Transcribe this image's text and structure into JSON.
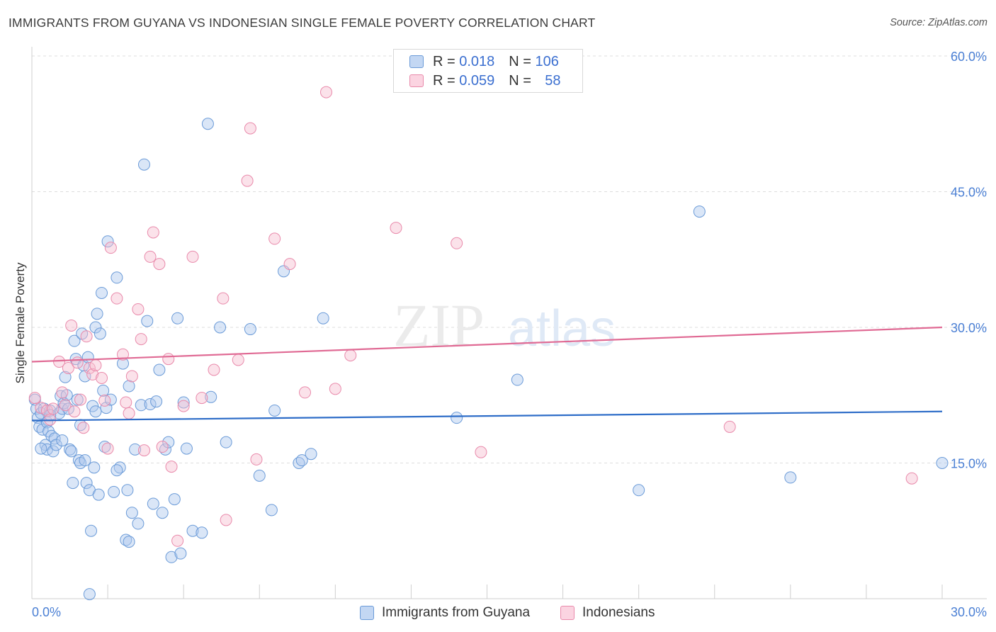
{
  "header": {
    "title": "IMMIGRANTS FROM GUYANA VS INDONESIAN SINGLE FEMALE POVERTY CORRELATION CHART",
    "source": "Source: ZipAtlas.com"
  },
  "watermark": {
    "part1": "ZIP",
    "part2": "atlas"
  },
  "legend": {
    "rows": [
      {
        "r_label": "R =",
        "r_value": "0.018",
        "n_label": "N =",
        "n_value": "106"
      },
      {
        "r_label": "R =",
        "r_value": "0.059",
        "n_label": "N =",
        "n_value": "58"
      }
    ]
  },
  "bottom_legend": {
    "items": [
      {
        "label": "Immigrants from Guyana"
      },
      {
        "label": "Indonesians"
      }
    ]
  },
  "colors": {
    "series1_fill": "#adc8ee",
    "series1_stroke": "#6b9bd8",
    "series1_line": "#2e6dc8",
    "series2_fill": "#f6bfd1",
    "series2_stroke": "#e98aab",
    "series2_line": "#e06a94",
    "grid": "#dddddd",
    "axis_text": "#4a7fd4"
  },
  "chart_data": {
    "type": "scatter",
    "title": "IMMIGRANTS FROM GUYANA VS INDONESIAN SINGLE FEMALE POVERTY CORRELATION CHART",
    "xlabel": "",
    "ylabel": "Single Female Poverty",
    "xlim": [
      0,
      30
    ],
    "ylim": [
      0,
      60
    ],
    "x_tick_labels": [
      "0.0%",
      "30.0%"
    ],
    "y_ticks": [
      15,
      30,
      45,
      60
    ],
    "y_tick_labels": [
      "15.0%",
      "30.0%",
      "45.0%",
      "60.0%"
    ],
    "grid": true,
    "series": [
      {
        "name": "Immigrants from Guyana",
        "r": 0.018,
        "n": 106,
        "trend": {
          "x0": 0,
          "y0": 19.7,
          "x1": 30,
          "y1": 20.7
        },
        "points": [
          [
            0.1,
            22
          ],
          [
            0.15,
            21
          ],
          [
            0.2,
            20
          ],
          [
            0.25,
            19
          ],
          [
            0.3,
            20.5
          ],
          [
            0.35,
            18.7
          ],
          [
            0.4,
            21
          ],
          [
            0.45,
            17
          ],
          [
            0.5,
            16.5
          ],
          [
            0.5,
            19.5
          ],
          [
            0.55,
            18.5
          ],
          [
            0.6,
            20.8
          ],
          [
            0.65,
            18
          ],
          [
            0.7,
            16.3
          ],
          [
            0.75,
            17.7
          ],
          [
            0.8,
            17
          ],
          [
            0.9,
            20.5
          ],
          [
            0.95,
            22.4
          ],
          [
            1.0,
            21
          ],
          [
            1.0,
            17.5
          ],
          [
            1.05,
            21.6
          ],
          [
            1.1,
            24.5
          ],
          [
            1.15,
            22.5
          ],
          [
            1.2,
            21
          ],
          [
            1.25,
            16.5
          ],
          [
            1.3,
            16.3
          ],
          [
            1.35,
            12.8
          ],
          [
            1.4,
            28.5
          ],
          [
            1.45,
            26.5
          ],
          [
            1.5,
            22
          ],
          [
            1.55,
            15.3
          ],
          [
            1.6,
            15
          ],
          [
            1.65,
            29.3
          ],
          [
            1.7,
            25.8
          ],
          [
            1.75,
            24.6
          ],
          [
            1.75,
            15.3
          ],
          [
            1.8,
            12.8
          ],
          [
            1.85,
            26.7
          ],
          [
            1.9,
            12
          ],
          [
            1.95,
            7.5
          ],
          [
            2.0,
            21.3
          ],
          [
            2.05,
            14.5
          ],
          [
            2.1,
            30
          ],
          [
            2.15,
            31.5
          ],
          [
            2.2,
            11.5
          ],
          [
            2.25,
            29.3
          ],
          [
            2.3,
            33.8
          ],
          [
            2.35,
            23
          ],
          [
            2.4,
            16.8
          ],
          [
            2.45,
            21.1
          ],
          [
            2.5,
            39.5
          ],
          [
            2.6,
            22
          ],
          [
            2.7,
            11.8
          ],
          [
            2.8,
            35.5
          ],
          [
            2.9,
            14.5
          ],
          [
            3.0,
            26
          ],
          [
            3.1,
            6.5
          ],
          [
            3.15,
            12
          ],
          [
            3.2,
            23.5
          ],
          [
            3.3,
            9.5
          ],
          [
            3.4,
            16.5
          ],
          [
            3.5,
            8.3
          ],
          [
            3.6,
            21.4
          ],
          [
            3.7,
            48
          ],
          [
            3.8,
            30.7
          ],
          [
            3.9,
            21.5
          ],
          [
            4.0,
            10.5
          ],
          [
            4.1,
            21.8
          ],
          [
            4.2,
            25.3
          ],
          [
            4.3,
            9.5
          ],
          [
            4.4,
            16.5
          ],
          [
            4.5,
            17.3
          ],
          [
            4.6,
            4.6
          ],
          [
            4.7,
            11
          ],
          [
            4.8,
            31
          ],
          [
            4.9,
            5
          ],
          [
            5.0,
            21.7
          ],
          [
            5.1,
            16.6
          ],
          [
            5.3,
            7.5
          ],
          [
            5.6,
            7.3
          ],
          [
            5.8,
            52.5
          ],
          [
            5.9,
            22.3
          ],
          [
            6.2,
            30
          ],
          [
            6.4,
            17.3
          ],
          [
            7.2,
            29.8
          ],
          [
            7.5,
            13.6
          ],
          [
            7.9,
            9.8
          ],
          [
            8.0,
            20.8
          ],
          [
            8.3,
            36.2
          ],
          [
            8.8,
            15
          ],
          [
            8.9,
            15.3
          ],
          [
            9.2,
            16
          ],
          [
            9.6,
            31
          ],
          [
            1.9,
            0.5
          ],
          [
            14.0,
            20
          ],
          [
            16.0,
            24.2
          ],
          [
            20.0,
            12
          ],
          [
            22.0,
            42.8
          ],
          [
            25.0,
            13.4
          ],
          [
            30.0,
            15
          ],
          [
            0.3,
            16.6
          ],
          [
            0.6,
            20.3
          ],
          [
            1.6,
            19.2
          ],
          [
            2.1,
            20.7
          ],
          [
            2.8,
            14.2
          ],
          [
            3.2,
            6.3
          ]
        ]
      },
      {
        "name": "Indonesians",
        "r": 0.059,
        "n": 58,
        "trend": {
          "x0": 0,
          "y0": 26.2,
          "x1": 30,
          "y1": 30.0
        },
        "points": [
          [
            0.1,
            22.2
          ],
          [
            0.3,
            21.1
          ],
          [
            0.5,
            20.8
          ],
          [
            0.6,
            19.8
          ],
          [
            0.7,
            21
          ],
          [
            0.9,
            26.2
          ],
          [
            1.0,
            22.8
          ],
          [
            1.1,
            21.4
          ],
          [
            1.2,
            25.5
          ],
          [
            1.3,
            30.2
          ],
          [
            1.4,
            20.7
          ],
          [
            1.5,
            26.1
          ],
          [
            1.6,
            22
          ],
          [
            1.7,
            18.9
          ],
          [
            1.8,
            29
          ],
          [
            1.9,
            25.5
          ],
          [
            2.0,
            24.8
          ],
          [
            2.1,
            25.8
          ],
          [
            2.3,
            24.4
          ],
          [
            2.4,
            21.9
          ],
          [
            2.5,
            16.6
          ],
          [
            2.6,
            38.8
          ],
          [
            2.8,
            33.2
          ],
          [
            3.0,
            27
          ],
          [
            3.1,
            21.7
          ],
          [
            3.2,
            20.5
          ],
          [
            3.3,
            24.6
          ],
          [
            3.5,
            32
          ],
          [
            3.6,
            28.7
          ],
          [
            3.7,
            16.4
          ],
          [
            3.9,
            37.8
          ],
          [
            4.0,
            40.5
          ],
          [
            4.2,
            37
          ],
          [
            4.3,
            16.8
          ],
          [
            4.5,
            26.5
          ],
          [
            4.6,
            14.6
          ],
          [
            4.8,
            6.4
          ],
          [
            5.0,
            21.3
          ],
          [
            5.3,
            37.8
          ],
          [
            5.6,
            22.2
          ],
          [
            6.0,
            25.3
          ],
          [
            6.3,
            33.2
          ],
          [
            6.4,
            8.7
          ],
          [
            6.8,
            26.4
          ],
          [
            7.1,
            46.2
          ],
          [
            7.2,
            52
          ],
          [
            7.4,
            15.4
          ],
          [
            8.0,
            39.8
          ],
          [
            8.5,
            37
          ],
          [
            9.0,
            22.8
          ],
          [
            10.0,
            23.2
          ],
          [
            10.5,
            26.9
          ],
          [
            12.0,
            41
          ],
          [
            14.0,
            39.3
          ],
          [
            14.8,
            16.2
          ],
          [
            23.0,
            19
          ],
          [
            29.0,
            13.3
          ],
          [
            9.7,
            56
          ]
        ]
      }
    ]
  }
}
